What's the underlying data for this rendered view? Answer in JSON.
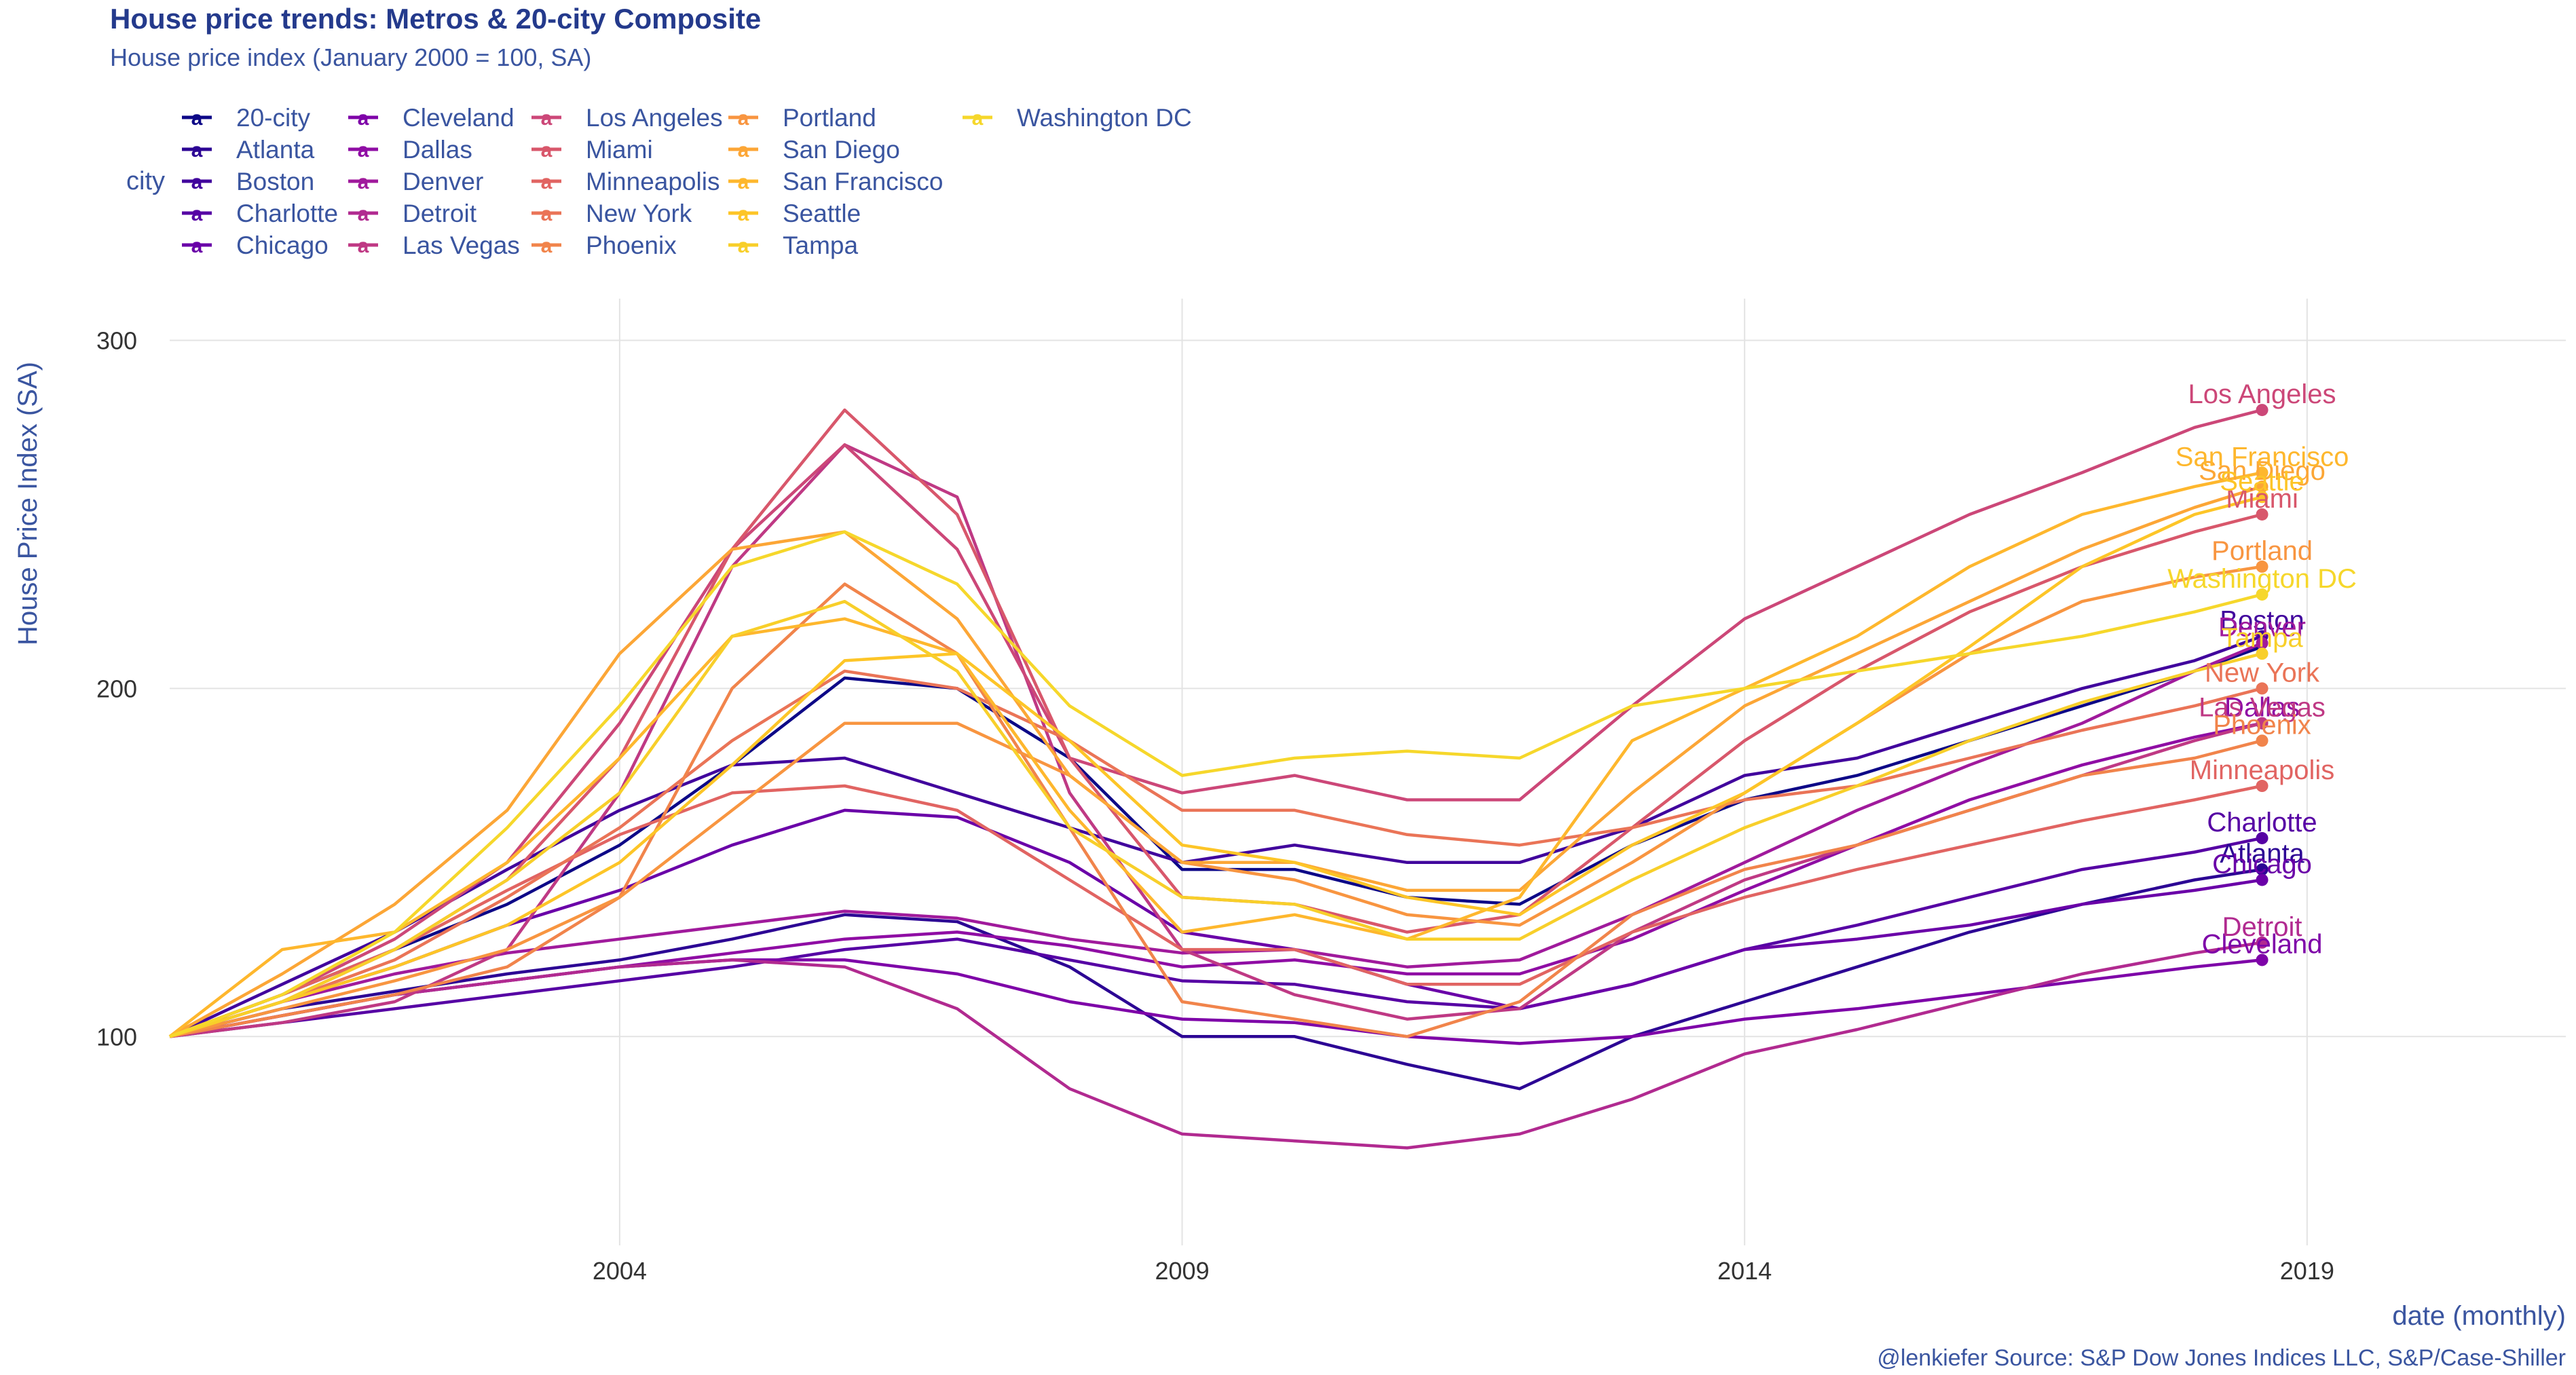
{
  "chart_data": {
    "type": "line",
    "title": "House price trends: Metros & 20-city Composite",
    "subtitle": "House price index (January 2000 = 100, SA)",
    "xlabel": "date (monthly)",
    "ylabel": "House Price Index (SA)",
    "caption": "@lenkiefer Source: S&P Dow Jones Indices LLC, S&P/Case-Shiller",
    "legend_title": "city",
    "legend_position": "top-left",
    "grid": true,
    "xlim": [
      2000.0,
      2021.3
    ],
    "ylim": [
      40,
      312
    ],
    "x_ticks": [
      2004,
      2009,
      2014,
      2019
    ],
    "x_tick_labels": [
      "2004",
      "2009",
      "2014",
      "2019"
    ],
    "y_ticks": [
      100,
      200,
      300
    ],
    "y_tick_labels": [
      "100",
      "200",
      "300"
    ],
    "x": [
      2000.0,
      2001.0,
      2002.0,
      2003.0,
      2004.0,
      2005.0,
      2006.0,
      2007.0,
      2008.0,
      2009.0,
      2010.0,
      2011.0,
      2012.0,
      2013.0,
      2014.0,
      2015.0,
      2016.0,
      2017.0,
      2018.0,
      2018.6
    ],
    "series": [
      {
        "name": "20-city",
        "color": "#0d0887",
        "values": [
          100,
          112,
          125,
          138,
          155,
          178,
          203,
          200,
          180,
          148,
          148,
          140,
          138,
          155,
          168,
          175,
          185,
          195,
          205,
          212
        ]
      },
      {
        "name": "Atlanta",
        "color": "#2c0594",
        "values": [
          100,
          108,
          113,
          118,
          122,
          128,
          135,
          133,
          120,
          100,
          100,
          92,
          85,
          100,
          110,
          120,
          130,
          138,
          145,
          148
        ]
      },
      {
        "name": "Boston",
        "color": "#41049d",
        "values": [
          100,
          115,
          130,
          148,
          165,
          178,
          180,
          170,
          160,
          150,
          155,
          150,
          150,
          160,
          175,
          180,
          190,
          200,
          208,
          215
        ]
      },
      {
        "name": "Charlotte",
        "color": "#5601a4",
        "values": [
          100,
          104,
          108,
          112,
          116,
          120,
          125,
          128,
          122,
          116,
          115,
          110,
          108,
          115,
          125,
          132,
          140,
          148,
          153,
          157
        ]
      },
      {
        "name": "Chicago",
        "color": "#6a00a8",
        "values": [
          100,
          110,
          120,
          132,
          142,
          155,
          165,
          163,
          150,
          130,
          125,
          115,
          108,
          115,
          125,
          128,
          132,
          138,
          142,
          145
        ]
      },
      {
        "name": "Cleveland",
        "color": "#7e03a8",
        "values": [
          100,
          106,
          112,
          116,
          120,
          122,
          122,
          118,
          110,
          105,
          104,
          100,
          98,
          100,
          105,
          108,
          112,
          116,
          120,
          122
        ]
      },
      {
        "name": "Dallas",
        "color": "#8f0da4",
        "values": [
          100,
          106,
          112,
          116,
          120,
          124,
          128,
          130,
          126,
          120,
          122,
          118,
          118,
          128,
          142,
          155,
          168,
          178,
          186,
          190
        ]
      },
      {
        "name": "Denver",
        "color": "#a01a9c",
        "values": [
          100,
          110,
          118,
          124,
          128,
          132,
          136,
          134,
          128,
          124,
          125,
          120,
          122,
          135,
          150,
          165,
          178,
          190,
          205,
          213
        ]
      },
      {
        "name": "Detroit",
        "color": "#b12a90",
        "values": [
          100,
          106,
          112,
          116,
          120,
          122,
          120,
          108,
          85,
          72,
          70,
          68,
          72,
          82,
          95,
          102,
          110,
          118,
          124,
          127
        ]
      },
      {
        "name": "Las Vegas",
        "color": "#bf3984",
        "values": [
          100,
          104,
          110,
          125,
          170,
          235,
          270,
          255,
          170,
          125,
          112,
          105,
          108,
          130,
          145,
          155,
          165,
          175,
          185,
          190
        ]
      },
      {
        "name": "Los Angeles",
        "color": "#cc4778",
        "values": [
          100,
          112,
          128,
          150,
          190,
          240,
          270,
          240,
          180,
          170,
          175,
          168,
          168,
          195,
          220,
          235,
          250,
          262,
          275,
          280
        ]
      },
      {
        "name": "Miami",
        "color": "#d8576b",
        "values": [
          100,
          110,
          125,
          145,
          180,
          240,
          280,
          250,
          180,
          140,
          138,
          130,
          135,
          160,
          185,
          205,
          222,
          235,
          245,
          250
        ]
      },
      {
        "name": "Minneapolis",
        "color": "#e16462",
        "values": [
          100,
          112,
          125,
          142,
          158,
          170,
          172,
          165,
          145,
          125,
          125,
          115,
          115,
          130,
          140,
          148,
          155,
          162,
          168,
          172
        ]
      },
      {
        "name": "New York",
        "color": "#ea7457",
        "values": [
          100,
          110,
          122,
          140,
          160,
          185,
          205,
          200,
          185,
          165,
          165,
          158,
          155,
          160,
          168,
          172,
          180,
          188,
          195,
          200
        ]
      },
      {
        "name": "Phoenix",
        "color": "#f1844b",
        "values": [
          100,
          106,
          112,
          120,
          140,
          200,
          230,
          210,
          160,
          110,
          105,
          100,
          110,
          135,
          148,
          155,
          165,
          175,
          180,
          185
        ]
      },
      {
        "name": "Portland",
        "color": "#f89540",
        "values": [
          100,
          108,
          116,
          125,
          140,
          165,
          190,
          190,
          175,
          150,
          145,
          135,
          132,
          150,
          170,
          190,
          210,
          225,
          232,
          235
        ]
      },
      {
        "name": "San Diego",
        "color": "#fca636",
        "values": [
          100,
          118,
          138,
          165,
          210,
          240,
          245,
          220,
          175,
          150,
          150,
          142,
          142,
          170,
          195,
          210,
          225,
          240,
          252,
          258
        ]
      },
      {
        "name": "San Francisco",
        "color": "#feb72d",
        "values": [
          100,
          125,
          130,
          150,
          180,
          215,
          220,
          210,
          165,
          130,
          135,
          128,
          140,
          185,
          200,
          215,
          235,
          250,
          258,
          262
        ]
      },
      {
        "name": "Seattle",
        "color": "#fdc527",
        "values": [
          100,
          110,
          120,
          132,
          150,
          178,
          208,
          210,
          185,
          155,
          150,
          140,
          135,
          155,
          170,
          190,
          212,
          235,
          250,
          255
        ]
      },
      {
        "name": "Tampa",
        "color": "#f8cf2a",
        "values": [
          100,
          110,
          125,
          145,
          170,
          215,
          225,
          205,
          160,
          140,
          138,
          128,
          128,
          145,
          160,
          172,
          185,
          196,
          205,
          210
        ]
      },
      {
        "name": "Washington DC",
        "color": "#f6d72b",
        "values": [
          100,
          112,
          130,
          160,
          195,
          235,
          245,
          230,
          195,
          175,
          180,
          182,
          180,
          195,
          200,
          205,
          210,
          215,
          222,
          227
        ]
      }
    ]
  }
}
